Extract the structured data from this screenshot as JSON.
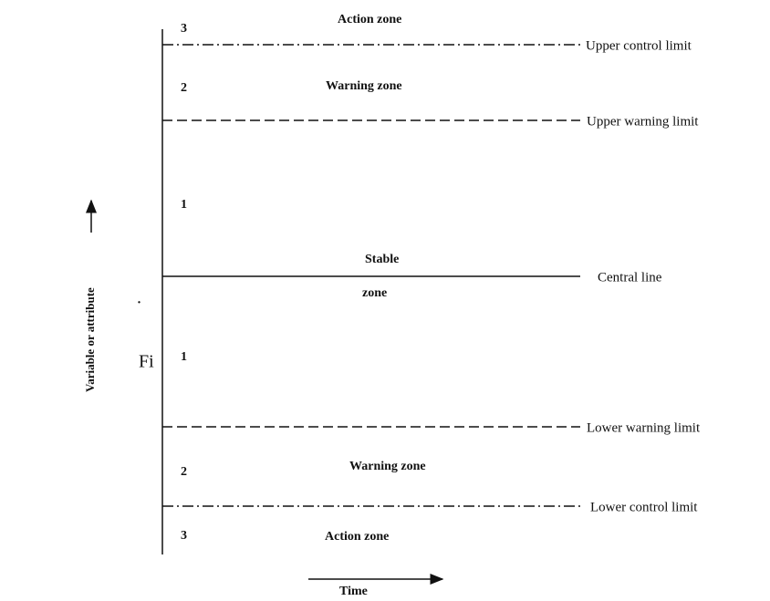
{
  "limits": [
    {
      "label": "Upper control limit"
    },
    {
      "label": "Upper warning limit"
    },
    {
      "label": "Central line"
    },
    {
      "label": "Lower warning limit"
    },
    {
      "label": "Lower control limit"
    }
  ],
  "zone_numbers": [
    "3",
    "2",
    "1",
    "1",
    "2",
    "3"
  ],
  "zone_labels": [
    "Action zone",
    "Warning zone",
    "Stable",
    "zone",
    "Warning zone",
    "Action zone"
  ],
  "axes": {
    "x": "Time",
    "y": "Variable or attribute"
  },
  "fragments": [
    ".",
    "Fi"
  ]
}
